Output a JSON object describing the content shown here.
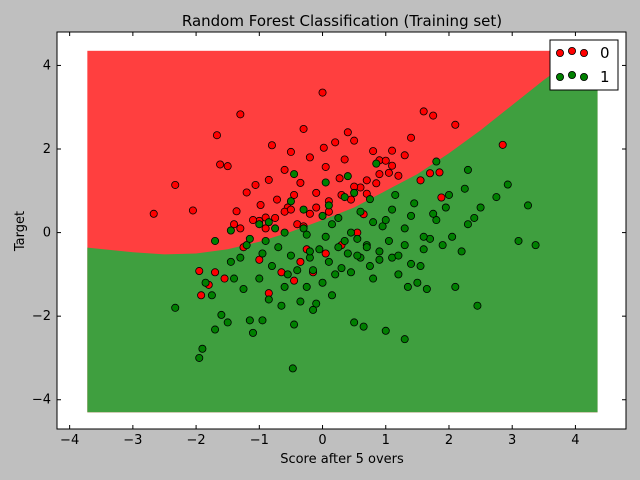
{
  "chart_data": {
    "type": "scatter",
    "title": "Random Forest Classification (Training set)",
    "xlabel": "Score after 5 overs",
    "ylabel": "Target",
    "xlim": [
      -4.2,
      4.8
    ],
    "ylim": [
      -4.7,
      4.8
    ],
    "x_ticks": [
      -4,
      -3,
      -2,
      -1,
      0,
      1,
      2,
      3,
      4
    ],
    "y_ticks": [
      -4,
      -2,
      0,
      2,
      4
    ],
    "x_tick_labels": [
      "−4",
      "−3",
      "−2",
      "−1",
      "0",
      "1",
      "2",
      "3",
      "4"
    ],
    "y_tick_labels": [
      "−4",
      "−2",
      "0",
      "2",
      "4"
    ],
    "legend_position": "top-right",
    "decision_regions": {
      "extent_x": [
        -3.72,
        4.35
      ],
      "extent_y": [
        -4.3,
        4.35
      ],
      "boundary_x": [
        -3.72,
        -3.0,
        -2.5,
        -2.0,
        -1.5,
        -1.0,
        -0.5,
        0.0,
        0.5,
        1.0,
        1.5,
        2.0,
        2.5,
        3.0,
        3.5,
        4.0,
        4.35
      ],
      "boundary_y": [
        -0.36,
        -0.47,
        -0.52,
        -0.5,
        -0.4,
        -0.22,
        0.02,
        0.3,
        0.6,
        1.0,
        1.4,
        1.9,
        2.45,
        3.05,
        3.65,
        4.2,
        4.35
      ],
      "region_above_color": "#ff3f3f",
      "region_below_color": "#3f9f3f"
    },
    "series": [
      {
        "name": "0",
        "color": "#ff0000",
        "x": [
          -2.67,
          -2.33,
          -2.05,
          -1.95,
          -1.67,
          -1.62,
          -1.5,
          -1.36,
          -1.3,
          -1.2,
          -1.06,
          -1.0,
          -0.98,
          -0.9,
          -0.85,
          -0.8,
          -0.72,
          -0.6,
          -0.55,
          -0.5,
          -0.45,
          -0.35,
          -0.3,
          -0.2,
          -0.1,
          0.0,
          0.02,
          0.05,
          0.1,
          0.2,
          0.27,
          0.35,
          0.4,
          0.45,
          0.5,
          0.6,
          0.65,
          0.7,
          0.8,
          0.85,
          0.9,
          1.0,
          1.05,
          1.1,
          1.2,
          1.3,
          1.4,
          1.6,
          1.7,
          1.75,
          1.85,
          1.88,
          2.1,
          2.85,
          -1.4,
          -1.3,
          -1.1,
          -0.9,
          -0.75,
          -0.6,
          -0.5,
          -0.4,
          -0.3,
          -0.2,
          -0.1,
          0.1,
          0.3,
          0.5,
          0.7,
          0.9,
          1.1,
          -0.25,
          -0.65,
          -1.55,
          -1.7,
          -1.92,
          -1.8,
          -1.0,
          -0.85,
          -0.45,
          0.05,
          0.3,
          0.55,
          -0.15,
          -0.35,
          -1.25,
          1.55
        ],
        "y": [
          0.45,
          1.14,
          0.53,
          -0.92,
          2.33,
          1.63,
          1.59,
          0.51,
          2.83,
          0.96,
          1.14,
          0.28,
          0.66,
          0.36,
          1.26,
          2.09,
          0.79,
          1.5,
          0.6,
          1.93,
          0.9,
          1.19,
          2.48,
          1.8,
          0.95,
          3.35,
          2.03,
          1.57,
          0.5,
          2.16,
          1.3,
          1.75,
          2.4,
          0.79,
          2.2,
          1.08,
          0.44,
          0.93,
          1.95,
          1.18,
          1.73,
          1.72,
          1.43,
          1.96,
          1.36,
          1.85,
          2.27,
          2.9,
          1.42,
          2.8,
          1.44,
          0.84,
          2.58,
          2.1,
          0.2,
          0.1,
          0.3,
          0.1,
          0.35,
          0.5,
          0.55,
          0.2,
          0.15,
          0.45,
          0.6,
          0.75,
          0.9,
          1.1,
          1.25,
          1.4,
          1.6,
          -0.4,
          -0.95,
          -1.1,
          -0.95,
          -1.5,
          -1.25,
          -0.65,
          -1.45,
          -1.15,
          -0.5,
          -0.3,
          0.0,
          -0.95,
          -0.7,
          -0.35,
          1.25
        ]
      },
      {
        "name": "1",
        "color": "#008000",
        "x": [
          -2.33,
          -1.95,
          -1.9,
          -1.85,
          -1.75,
          -1.7,
          -1.6,
          -1.5,
          -1.45,
          -1.4,
          -1.3,
          -1.25,
          -1.2,
          -1.1,
          -1.0,
          -0.95,
          -0.9,
          -0.85,
          -0.8,
          -0.7,
          -0.6,
          -0.55,
          -0.5,
          -0.45,
          -0.4,
          -0.35,
          -0.3,
          -0.25,
          -0.2,
          -0.15,
          -0.1,
          -0.05,
          0.0,
          0.05,
          0.1,
          0.15,
          0.2,
          0.25,
          0.3,
          0.35,
          0.4,
          0.45,
          0.5,
          0.55,
          0.6,
          0.65,
          0.7,
          0.75,
          0.8,
          0.9,
          1.0,
          1.05,
          1.1,
          1.2,
          1.3,
          1.35,
          1.4,
          1.5,
          1.6,
          1.7,
          1.8,
          1.9,
          2.0,
          2.1,
          2.2,
          2.3,
          2.4,
          2.5,
          2.75,
          2.93,
          3.1,
          3.25,
          3.37,
          -0.47,
          -0.2,
          0.55,
          0.7,
          0.9,
          1.2,
          1.3,
          1.55,
          1.65,
          2.05,
          2.45,
          -1.0,
          -0.5,
          0.0,
          0.35,
          0.6,
          0.95,
          1.1,
          1.45,
          1.75,
          1.95,
          2.25,
          -1.7,
          -1.45,
          -1.15,
          -0.75,
          -0.25,
          0.15,
          0.45,
          0.8,
          1.0,
          1.3,
          1.6,
          -0.6,
          -0.3,
          0.1,
          0.25,
          0.5,
          0.75,
          1.15,
          1.4,
          -0.85,
          -0.45,
          0.05,
          0.4,
          0.85,
          2.3,
          1.8,
          -1.15,
          -0.95,
          -0.65,
          -0.15
        ],
        "y": [
          -1.8,
          -3.0,
          -2.78,
          -1.2,
          -1.5,
          -2.32,
          -1.97,
          -2.15,
          -0.7,
          -1.1,
          -0.6,
          -1.35,
          -0.3,
          -2.4,
          -1.1,
          -0.5,
          -0.2,
          -1.6,
          -0.8,
          -0.35,
          -1.3,
          -1.0,
          -0.55,
          -2.2,
          -0.9,
          -1.65,
          0.1,
          -1.3,
          -0.6,
          -0.9,
          -1.7,
          -0.4,
          -1.2,
          -0.1,
          -0.7,
          -1.5,
          -1.0,
          -0.35,
          -0.85,
          -0.2,
          -0.5,
          -0.95,
          -2.15,
          -0.15,
          -0.6,
          -2.25,
          -0.3,
          -0.8,
          -1.1,
          -0.45,
          -2.35,
          -0.2,
          -0.6,
          -1.0,
          -0.3,
          -1.3,
          -0.75,
          -1.2,
          -0.4,
          -0.15,
          0.3,
          -0.3,
          0.9,
          -1.3,
          -0.45,
          1.5,
          0.35,
          0.6,
          0.85,
          1.15,
          -0.2,
          0.65,
          -0.3,
          -3.25,
          -0.45,
          -0.55,
          -0.35,
          -0.65,
          -0.55,
          -2.55,
          -0.8,
          -1.35,
          -0.1,
          -1.75,
          0.2,
          0.75,
          0.4,
          0.85,
          0.5,
          0.15,
          0.55,
          0.7,
          0.45,
          0.6,
          1.05,
          -0.2,
          0.05,
          -0.15,
          0.1,
          -0.05,
          0.2,
          0.0,
          0.25,
          0.3,
          0.1,
          -0.1,
          0.0,
          0.55,
          0.65,
          0.35,
          0.95,
          0.8,
          0.9,
          0.4,
          0.25,
          1.4,
          1.2,
          1.35,
          1.65,
          0.2,
          1.7,
          -2.1,
          -2.1,
          -1.75,
          -1.85
        ]
      }
    ]
  }
}
